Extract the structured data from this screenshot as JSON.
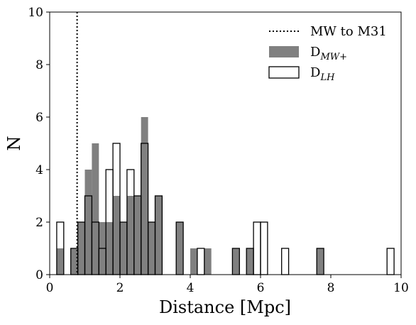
{
  "chart_data": {
    "type": "bar",
    "subtype": "overlaid-histogram",
    "xlabel": "Distance [Mpc]",
    "ylabel": "N",
    "xlim": [
      0,
      10
    ],
    "ylim": [
      0,
      10
    ],
    "xticks": [
      "0",
      "2",
      "4",
      "6",
      "8",
      "10"
    ],
    "yticks": [
      "0",
      "2",
      "4",
      "6",
      "8",
      "10"
    ],
    "bin_width": 0.2,
    "reference_line": {
      "name": "MW to M31",
      "x": 0.78,
      "style": "dotted",
      "color": "#000000"
    },
    "legend": {
      "position": "top-right",
      "entries": [
        {
          "label": "MW to M31",
          "style": "dotted-line"
        },
        {
          "label": "D",
          "subscript": "MW+",
          "style": "filled"
        },
        {
          "label": "D",
          "subscript": "LH",
          "style": "outline"
        }
      ]
    },
    "series": [
      {
        "name": "D_MW+",
        "style": "filled",
        "color": "#808080",
        "bins": [
          {
            "x0": 0.2,
            "n": 1
          },
          {
            "x0": 0.6,
            "n": 1
          },
          {
            "x0": 0.8,
            "n": 2
          },
          {
            "x0": 1.0,
            "n": 4
          },
          {
            "x0": 1.2,
            "n": 5
          },
          {
            "x0": 1.4,
            "n": 2
          },
          {
            "x0": 1.6,
            "n": 2
          },
          {
            "x0": 1.8,
            "n": 3
          },
          {
            "x0": 2.0,
            "n": 2
          },
          {
            "x0": 2.2,
            "n": 3
          },
          {
            "x0": 2.4,
            "n": 3
          },
          {
            "x0": 2.6,
            "n": 6
          },
          {
            "x0": 2.8,
            "n": 2
          },
          {
            "x0": 3.0,
            "n": 3
          },
          {
            "x0": 3.6,
            "n": 2
          },
          {
            "x0": 4.0,
            "n": 1
          },
          {
            "x0": 4.4,
            "n": 1
          },
          {
            "x0": 5.2,
            "n": 1
          },
          {
            "x0": 5.6,
            "n": 1
          },
          {
            "x0": 7.6,
            "n": 1
          }
        ]
      },
      {
        "name": "D_LH",
        "style": "outline",
        "color": "#000000",
        "bins": [
          {
            "x0": 0.2,
            "n": 2
          },
          {
            "x0": 0.6,
            "n": 1
          },
          {
            "x0": 0.8,
            "n": 2
          },
          {
            "x0": 1.0,
            "n": 3
          },
          {
            "x0": 1.2,
            "n": 2
          },
          {
            "x0": 1.4,
            "n": 1
          },
          {
            "x0": 1.6,
            "n": 4
          },
          {
            "x0": 1.8,
            "n": 5
          },
          {
            "x0": 2.0,
            "n": 2
          },
          {
            "x0": 2.2,
            "n": 4
          },
          {
            "x0": 2.4,
            "n": 3
          },
          {
            "x0": 2.6,
            "n": 5
          },
          {
            "x0": 2.8,
            "n": 2
          },
          {
            "x0": 3.0,
            "n": 3
          },
          {
            "x0": 3.6,
            "n": 2
          },
          {
            "x0": 4.2,
            "n": 1
          },
          {
            "x0": 5.2,
            "n": 1
          },
          {
            "x0": 5.6,
            "n": 1
          },
          {
            "x0": 5.8,
            "n": 2
          },
          {
            "x0": 6.0,
            "n": 2
          },
          {
            "x0": 6.6,
            "n": 1
          },
          {
            "x0": 7.6,
            "n": 1
          },
          {
            "x0": 9.6,
            "n": 1
          }
        ]
      }
    ]
  }
}
